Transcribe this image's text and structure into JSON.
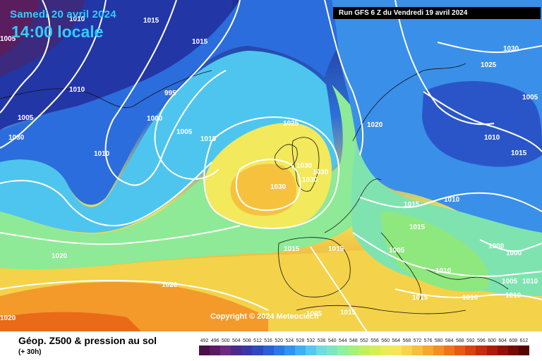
{
  "header": {
    "date": "Samedi 20 avril 2024",
    "time": "14:00 locale",
    "run": "Run GFS 6 Z du Vendredi 19 avril 2024"
  },
  "map": {
    "copyright": "Copyright © 2024 Meteociel.fr",
    "isobar_labels": [
      "1015",
      "1015",
      "1005",
      "1010",
      "1005",
      "995",
      "1000",
      "1005",
      "1015",
      "1010",
      "1030",
      "1025",
      "1005",
      "1015",
      "1025",
      "1030",
      "1030",
      "1030",
      "1030",
      "1030",
      "1020",
      "1010",
      "1015",
      "1010",
      "1015",
      "1005",
      "1000",
      "1000",
      "1015",
      "1015",
      "1005",
      "1010",
      "1010",
      "1010",
      "1020",
      "1020",
      "1020",
      "1015",
      "1005",
      "1010",
      "1010",
      "1015"
    ]
  },
  "legend": {
    "title": "Géop. Z500 & pression au sol",
    "subtitle": "(+ 30h)",
    "scale_values": [
      "492",
      "496",
      "500",
      "504",
      "508",
      "512",
      "516",
      "520",
      "524",
      "528",
      "532",
      "536",
      "540",
      "544",
      "548",
      "552",
      "556",
      "560",
      "564",
      "568",
      "572",
      "576",
      "580",
      "584",
      "588",
      "592",
      "596",
      "600",
      "604",
      "608",
      "612"
    ],
    "scale_colors": [
      "#4a0f4a",
      "#5c1a66",
      "#6e2a80",
      "#4b2a8c",
      "#3a37a6",
      "#2e48c0",
      "#2a5fd6",
      "#2b78e8",
      "#2f93ef",
      "#3fb0f2",
      "#55c8f0",
      "#6fdce2",
      "#7fe6c4",
      "#8ef0a0",
      "#a3f27a",
      "#bff060",
      "#d6ee56",
      "#eaeb58",
      "#f6e45a",
      "#f8d44c",
      "#f7bf3e",
      "#f5a830",
      "#f38f24",
      "#ef741a",
      "#e65a14",
      "#d8420f",
      "#c52c0c",
      "#ae1a0a",
      "#931008",
      "#760806",
      "#540404"
    ]
  },
  "colors": {
    "accent_text": "#33ccff",
    "isobar": "#ffffff"
  }
}
